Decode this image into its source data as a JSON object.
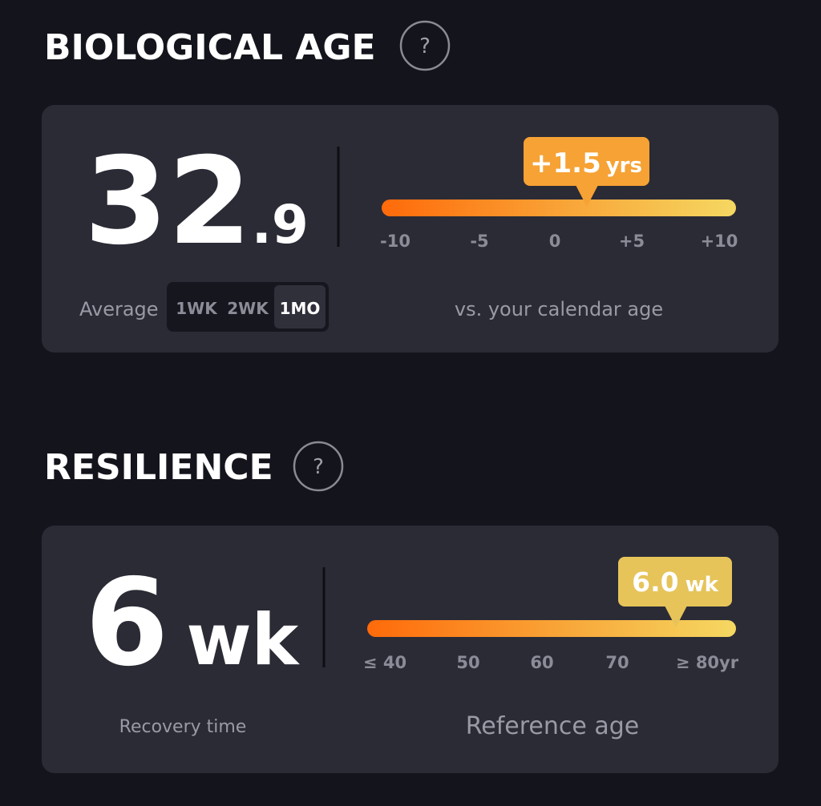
{
  "biological_age": {
    "title": "BIOLOGICAL AGE",
    "help": "?",
    "value_whole": "32",
    "value_decimal": ".9",
    "average_label": "Average",
    "periods": [
      "1WK",
      "2WK",
      "1MO"
    ],
    "delta_value": "+1.5",
    "delta_unit": "yrs",
    "scale": [
      "-10",
      "-5",
      "0",
      "+5",
      "+10"
    ],
    "caption": "vs. your calendar age"
  },
  "resilience": {
    "title": "RESILIENCE",
    "help": "?",
    "value": "6",
    "unit": "wk",
    "value_label": "Recovery time",
    "marker_value": "6.0",
    "marker_unit": "wk",
    "scale": [
      "≤ 40",
      "50",
      "60",
      "70",
      "≥ 80yr"
    ],
    "caption": "Reference age"
  }
}
